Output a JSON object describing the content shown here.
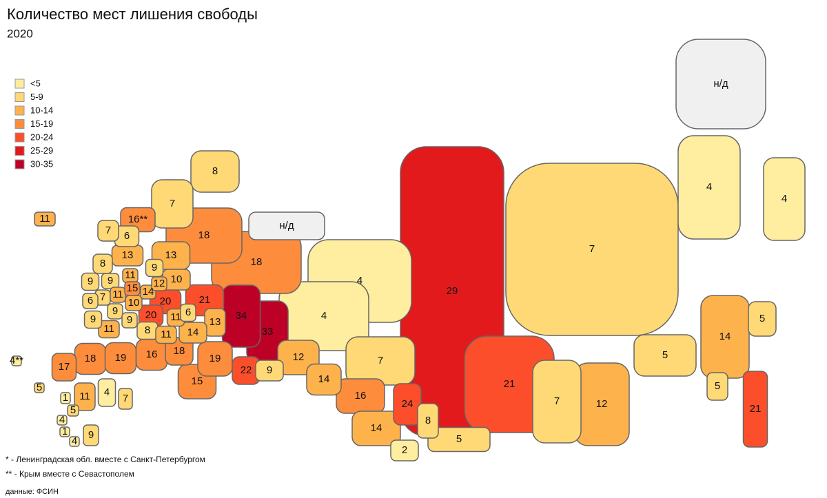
{
  "header": {
    "title": "Количество мест лишения свободы",
    "subtitle": "2020"
  },
  "legend": [
    {
      "label": "<5",
      "min": 0,
      "max": 4,
      "color": "#ffeda0"
    },
    {
      "label": "5-9",
      "min": 5,
      "max": 9,
      "color": "#fed976"
    },
    {
      "label": "10-14",
      "min": 10,
      "max": 14,
      "color": "#feb24c"
    },
    {
      "label": "15-19",
      "min": 15,
      "max": 19,
      "color": "#fd8d3c"
    },
    {
      "label": "20-24",
      "min": 20,
      "max": 24,
      "color": "#fc4e2a"
    },
    {
      "label": "25-29",
      "min": 25,
      "max": 29,
      "color": "#e31a1c"
    },
    {
      "label": "30-35",
      "min": 30,
      "max": 35,
      "color": "#bd0026"
    }
  ],
  "no_data_color": "#f0f0f0",
  "regions": [
    {
      "value": 8
    },
    {
      "value": 7
    },
    {
      "value": 16,
      "label": "16**"
    },
    {
      "value": 11
    },
    {
      "value": 7
    },
    {
      "value": 6
    },
    {
      "value": 18
    },
    {
      "value": 13
    },
    {
      "value": 13
    },
    {
      "value": 18
    },
    {
      "value": 8
    },
    {
      "value": 9
    },
    {
      "value": 11
    },
    {
      "value": 9
    },
    {
      "value": 9
    },
    {
      "value": 10
    },
    {
      "value": 15
    },
    {
      "value": 14
    },
    {
      "value": 12
    },
    {
      "value": 7
    },
    {
      "value": 11
    },
    {
      "value": 6
    },
    {
      "value": 10
    },
    {
      "value": 20
    },
    {
      "value": 21
    },
    {
      "value": 4
    },
    {
      "value": 29
    },
    {
      "value": 7
    },
    {
      "value": 4
    },
    {
      "value": 4
    },
    {
      "value": null,
      "label": "н/д"
    },
    {
      "value": null,
      "label": "н/д"
    },
    {
      "value": 9
    },
    {
      "value": 9
    },
    {
      "value": 9
    },
    {
      "value": 20
    },
    {
      "value": 11
    },
    {
      "value": 6
    },
    {
      "value": 13
    },
    {
      "value": 34
    },
    {
      "value": 33
    },
    {
      "value": 4
    },
    {
      "value": 8
    },
    {
      "value": 11
    },
    {
      "value": 11
    },
    {
      "value": 14
    },
    {
      "value": 18
    },
    {
      "value": 19
    },
    {
      "value": 16
    },
    {
      "value": 18
    },
    {
      "value": 19
    },
    {
      "value": 12
    },
    {
      "value": 7
    },
    {
      "value": 17
    },
    {
      "value": 5
    },
    {
      "value": 22
    },
    {
      "value": 9
    },
    {
      "value": 14
    },
    {
      "value": 15
    },
    {
      "value": 16
    },
    {
      "value": 24
    },
    {
      "value": 21
    },
    {
      "value": 7
    },
    {
      "value": 12
    },
    {
      "value": 5
    },
    {
      "value": 14
    },
    {
      "value": 5
    },
    {
      "value": 5
    },
    {
      "value": 21
    },
    {
      "value": 8
    },
    {
      "value": 14
    },
    {
      "value": 5
    },
    {
      "value": 2
    },
    {
      "value": 1
    },
    {
      "value": 11
    },
    {
      "value": 4
    },
    {
      "value": 7
    },
    {
      "value": 5
    },
    {
      "value": 4
    },
    {
      "value": 1
    },
    {
      "value": 4
    },
    {
      "value": 9
    },
    {
      "value": 4,
      "label": "4**"
    }
  ],
  "footnotes": [
    "* - Ленинградская обл. вместе с Санкт-Петербургом",
    "** - Крым вместе с Севастополем"
  ],
  "source": "данные: ФСИН"
}
